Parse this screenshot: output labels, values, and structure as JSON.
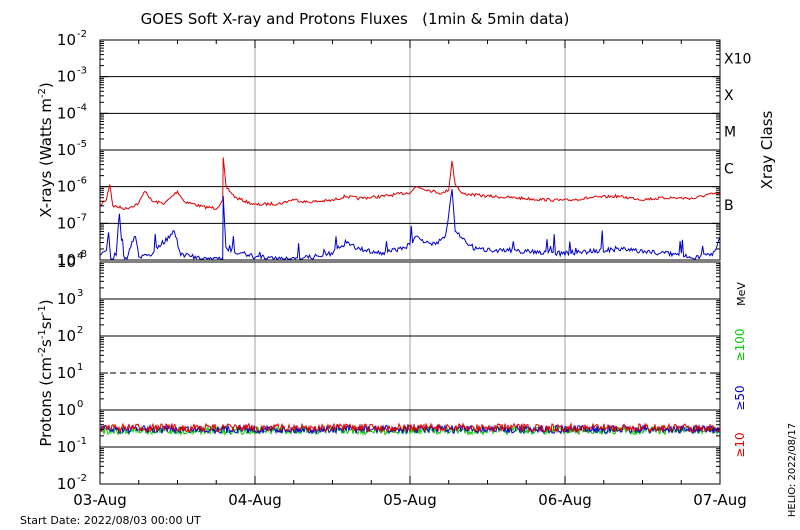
{
  "title": "GOES Soft X-ray and Protons Fluxes   (1min & 5min data)",
  "footer": {
    "start_date": "Start Date: 2022/08/03 00:00 UT",
    "helio": "HELIO: 2022/08/17"
  },
  "colors": {
    "red": "#e00000",
    "blue": "#0000cc",
    "green": "#00cc00",
    "grid": "#a0a0a0",
    "line": "#000000"
  },
  "chart_data": [
    {
      "type": "line",
      "panel": "xrays",
      "ylabel": "X-rays (Watts m^-2)",
      "yscale": "log",
      "ylim": [
        1e-08,
        0.01
      ],
      "y_ticks": [
        {
          "base": "10",
          "exp": "-8"
        },
        {
          "base": "10",
          "exp": "-7"
        },
        {
          "base": "10",
          "exp": "-6"
        },
        {
          "base": "10",
          "exp": "-5"
        },
        {
          "base": "10",
          "exp": "-4"
        },
        {
          "base": "10",
          "exp": "-3"
        },
        {
          "base": "10",
          "exp": "-2"
        }
      ],
      "right_axis_label": "Xray Class",
      "right_ticks": [
        {
          "label": "B",
          "value": 1e-07
        },
        {
          "label": "C",
          "value": 1e-06
        },
        {
          "label": "M",
          "value": 1e-05
        },
        {
          "label": "X",
          "value": 0.0001
        },
        {
          "label": "X10",
          "value": 0.001
        }
      ],
      "xlim": [
        "2022-08-03 00:00",
        "2022-08-07 00:00"
      ],
      "series": [
        {
          "color": "red",
          "points": [
            [
              "2022-08-03 00:00",
              3e-07
            ],
            [
              "2022-08-03 01:00",
              4.5e-07
            ],
            [
              "2022-08-03 01:30",
              1.2e-06
            ],
            [
              "2022-08-03 02:00",
              3e-07
            ],
            [
              "2022-08-03 04:00",
              2.5e-07
            ],
            [
              "2022-08-03 06:00",
              3.5e-07
            ],
            [
              "2022-08-03 07:00",
              8e-07
            ],
            [
              "2022-08-03 08:00",
              4e-07
            ],
            [
              "2022-08-03 10:00",
              3.5e-07
            ],
            [
              "2022-08-03 12:00",
              7.5e-07
            ],
            [
              "2022-08-03 13:00",
              4e-07
            ],
            [
              "2022-08-03 16:00",
              2.8e-07
            ],
            [
              "2022-08-03 18:00",
              2.6e-07
            ],
            [
              "2022-08-03 19:00",
              4e-07
            ],
            [
              "2022-08-03 19:05",
              6e-06
            ],
            [
              "2022-08-03 19:30",
              1e-06
            ],
            [
              "2022-08-03 21:00",
              5e-07
            ],
            [
              "2022-08-04 00:00",
              3.2e-07
            ],
            [
              "2022-08-04 04:00",
              3.5e-07
            ],
            [
              "2022-08-04 06:00",
              4.5e-07
            ],
            [
              "2022-08-04 08:00",
              3.8e-07
            ],
            [
              "2022-08-04 12:00",
              4.2e-07
            ],
            [
              "2022-08-04 14:00",
              5.5e-07
            ],
            [
              "2022-08-04 16:00",
              4.8e-07
            ],
            [
              "2022-08-04 20:00",
              5.5e-07
            ],
            [
              "2022-08-05 00:00",
              7e-07
            ],
            [
              "2022-08-05 01:00",
              1e-06
            ],
            [
              "2022-08-05 03:00",
              8e-07
            ],
            [
              "2022-08-05 05:00",
              6.5e-07
            ],
            [
              "2022-08-05 06:00",
              8.5e-07
            ],
            [
              "2022-08-05 06:30",
              5e-06
            ],
            [
              "2022-08-05 07:00",
              1.2e-06
            ],
            [
              "2022-08-05 08:00",
              6.5e-07
            ],
            [
              "2022-08-05 12:00",
              5.5e-07
            ],
            [
              "2022-08-05 16:00",
              5e-07
            ],
            [
              "2022-08-05 20:00",
              4.5e-07
            ],
            [
              "2022-08-06 00:00",
              4.2e-07
            ],
            [
              "2022-08-06 04:00",
              5e-07
            ],
            [
              "2022-08-06 08:00",
              5.5e-07
            ],
            [
              "2022-08-06 12:00",
              4.5e-07
            ],
            [
              "2022-08-06 16:00",
              5e-07
            ],
            [
              "2022-08-06 20:00",
              4.8e-07
            ],
            [
              "2022-08-06 22:00",
              6e-07
            ],
            [
              "2022-08-07 00:00",
              6.5e-07
            ]
          ]
        },
        {
          "color": "blue",
          "points": [
            [
              "2022-08-03 00:00",
              1.2e-08
            ],
            [
              "2022-08-03 01:00",
              2e-08
            ],
            [
              "2022-08-03 01:20",
              6e-08
            ],
            [
              "2022-08-03 01:40",
              1e-08
            ],
            [
              "2022-08-03 02:30",
              1.5e-08
            ],
            [
              "2022-08-03 03:00",
              2e-07
            ],
            [
              "2022-08-03 03:30",
              1.5e-08
            ],
            [
              "2022-08-03 04:00",
              1e-08
            ],
            [
              "2022-08-03 05:30",
              5e-08
            ],
            [
              "2022-08-03 06:00",
              1.2e-08
            ],
            [
              "2022-08-03 08:00",
              1.5e-08
            ],
            [
              "2022-08-03 11:30",
              6e-08
            ],
            [
              "2022-08-03 12:30",
              1.5e-08
            ],
            [
              "2022-08-03 16:00",
              1e-08
            ],
            [
              "2022-08-03 19:00",
              1.2e-08
            ],
            [
              "2022-08-03 19:05",
              6e-07
            ],
            [
              "2022-08-03 19:30",
              2e-08
            ],
            [
              "2022-08-03 22:00",
              1.5e-08
            ],
            [
              "2022-08-04 00:00",
              1.2e-08
            ],
            [
              "2022-08-04 06:00",
              1e-08
            ],
            [
              "2022-08-04 12:00",
              1.5e-08
            ],
            [
              "2022-08-04 14:00",
              3e-08
            ],
            [
              "2022-08-04 16:00",
              2e-08
            ],
            [
              "2022-08-04 20:00",
              1.5e-08
            ],
            [
              "2022-08-05 00:00",
              2.5e-08
            ],
            [
              "2022-08-05 01:00",
              5e-08
            ],
            [
              "2022-08-05 03:00",
              2.5e-08
            ],
            [
              "2022-08-05 05:30",
              4e-08
            ],
            [
              "2022-08-05 06:30",
              9e-07
            ],
            [
              "2022-08-05 07:00",
              6e-08
            ],
            [
              "2022-08-05 10:00",
              2e-08
            ],
            [
              "2022-08-05 16:00",
              1.8e-08
            ],
            [
              "2022-08-06 00:00",
              1.5e-08
            ],
            [
              "2022-08-06 08:00",
              2e-08
            ],
            [
              "2022-08-06 16:00",
              1.5e-08
            ],
            [
              "2022-08-06 20:00",
              1.2e-08
            ],
            [
              "2022-08-06 23:00",
              1.5e-08
            ],
            [
              "2022-08-07 00:00",
              4e-08
            ]
          ]
        }
      ]
    },
    {
      "type": "line",
      "panel": "protons",
      "ylabel": "Protons (cm^-2 s^-1 sr^-1)",
      "yscale": "log",
      "ylim": [
        0.01,
        10000
      ],
      "y_ticks": [
        {
          "base": "10",
          "exp": "-2"
        },
        {
          "base": "10",
          "exp": "-1"
        },
        {
          "base": "10",
          "exp": "0"
        },
        {
          "base": "10",
          "exp": "1"
        },
        {
          "base": "10",
          "exp": "2"
        },
        {
          "base": "10",
          "exp": "3"
        },
        {
          "base": "10",
          "exp": "4"
        }
      ],
      "threshold": 10,
      "right_label": "MeV",
      "x_tick_labels": [
        "03-Aug",
        "04-Aug",
        "05-Aug",
        "06-Aug",
        "07-Aug"
      ],
      "series": [
        {
          "name": "≥10",
          "color": "red",
          "level": 0.33
        },
        {
          "name": "≥50",
          "color": "blue",
          "level": 0.3
        },
        {
          "name": "≥100",
          "color": "green",
          "level": 0.28
        }
      ]
    }
  ]
}
